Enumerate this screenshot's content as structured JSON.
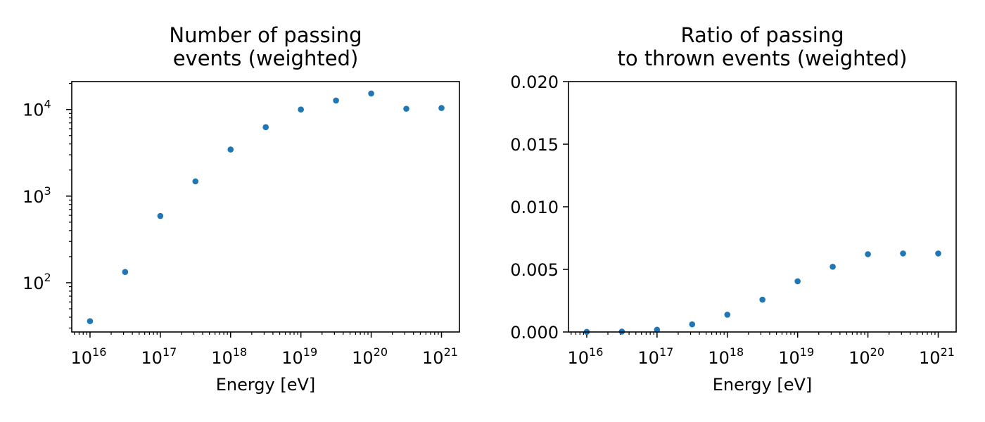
{
  "chart_data": [
    {
      "type": "scatter",
      "title_lines": [
        "Number of passing",
        "events (weighted)"
      ],
      "xlabel": "Energy [eV]",
      "ylabel": "",
      "xscale": "log",
      "yscale": "log",
      "xlim": [
        5500000000000000.0,
        1.8e+21
      ],
      "ylim": [
        27,
        21000
      ],
      "xtick_labels": [
        {
          "base": "10",
          "exp": "16"
        },
        {
          "base": "10",
          "exp": "17"
        },
        {
          "base": "10",
          "exp": "18"
        },
        {
          "base": "10",
          "exp": "19"
        },
        {
          "base": "10",
          "exp": "20"
        },
        {
          "base": "10",
          "exp": "21"
        }
      ],
      "ytick_labels": [
        {
          "base": "10",
          "exp": "2"
        },
        {
          "base": "10",
          "exp": "3"
        },
        {
          "base": "10",
          "exp": "4"
        }
      ],
      "grid": false,
      "marker_color": "#1f77b4",
      "x": [
        1e+16,
        3.16e+16,
        1e+17,
        3.16e+17,
        1e+18,
        3.16e+18,
        1e+19,
        3.16e+19,
        1e+20,
        3.16e+20,
        1e+21
      ],
      "y": [
        36,
        133,
        590,
        1480,
        3450,
        6250,
        10000,
        12700,
        15300,
        10200,
        10400
      ]
    },
    {
      "type": "scatter",
      "title_lines": [
        "Ratio of passing",
        "to thrown events (weighted)"
      ],
      "xlabel": "Energy [eV]",
      "ylabel": "",
      "xscale": "log",
      "yscale": "linear",
      "xlim": [
        5500000000000000.0,
        1.8e+21
      ],
      "ylim": [
        0,
        0.02
      ],
      "xtick_labels": [
        {
          "base": "10",
          "exp": "16"
        },
        {
          "base": "10",
          "exp": "17"
        },
        {
          "base": "10",
          "exp": "18"
        },
        {
          "base": "10",
          "exp": "19"
        },
        {
          "base": "10",
          "exp": "20"
        },
        {
          "base": "10",
          "exp": "21"
        }
      ],
      "ytick_labels": [
        "0.000",
        "0.005",
        "0.010",
        "0.015",
        "0.020"
      ],
      "grid": false,
      "marker_color": "#1f77b4",
      "x": [
        1e+16,
        3.16e+16,
        1e+17,
        3.16e+17,
        1e+18,
        3.16e+18,
        1e+19,
        3.16e+19,
        1e+20,
        3.16e+20,
        1e+21
      ],
      "y": [
        1e-05,
        3e-05,
        0.00018,
        0.00061,
        0.00138,
        0.00258,
        0.00405,
        0.00521,
        0.00621,
        0.00627,
        0.00627
      ]
    }
  ]
}
